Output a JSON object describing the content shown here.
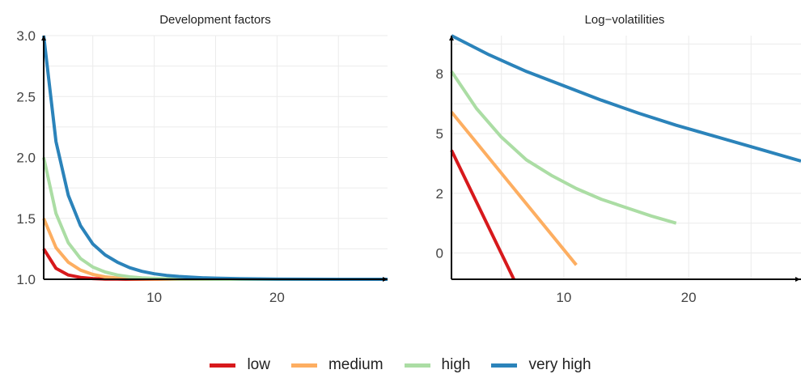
{
  "chart_data": [
    {
      "type": "line",
      "title": "Development factors",
      "xlabel": "",
      "ylabel": "",
      "xlim": [
        1,
        29
      ],
      "ylim": [
        1.0,
        3.0
      ],
      "xticks": [
        10,
        20
      ],
      "yticks": [
        1.0,
        1.5,
        2.0,
        2.5,
        3.0
      ],
      "ytick_labels": [
        "1.0",
        "1.5",
        "2.0",
        "2.5",
        "3.0"
      ],
      "grid": true,
      "series": [
        {
          "name": "low",
          "color": "#d7191c",
          "x": [
            1,
            2,
            3,
            4,
            5,
            6,
            7,
            8,
            9,
            10,
            12,
            15,
            20,
            25,
            29
          ],
          "y": [
            1.25,
            1.09,
            1.035,
            1.015,
            1.006,
            1.002,
            1.001,
            1.0,
            1.0,
            1.0,
            1.0,
            1.0,
            1.0,
            1.0,
            1.0
          ]
        },
        {
          "name": "medium",
          "color": "#fdae61",
          "x": [
            1,
            2,
            3,
            4,
            5,
            6,
            7,
            8,
            9,
            10,
            12,
            15,
            20,
            25,
            29
          ],
          "y": [
            1.5,
            1.26,
            1.14,
            1.075,
            1.04,
            1.02,
            1.01,
            1.005,
            1.003,
            1.001,
            1.0,
            1.0,
            1.0,
            1.0,
            1.0
          ]
        },
        {
          "name": "high",
          "color": "#abdda4",
          "x": [
            1,
            2,
            3,
            4,
            5,
            6,
            7,
            8,
            9,
            10,
            12,
            15,
            20,
            25,
            29
          ],
          "y": [
            2.0,
            1.54,
            1.3,
            1.17,
            1.1,
            1.06,
            1.035,
            1.02,
            1.012,
            1.007,
            1.002,
            1.0,
            1.0,
            1.0,
            1.0
          ]
        },
        {
          "name": "very high",
          "color": "#2b83ba",
          "x": [
            1,
            2,
            3,
            4,
            5,
            6,
            7,
            8,
            9,
            10,
            11,
            12,
            13,
            14,
            15,
            17,
            20,
            25,
            29
          ],
          "y": [
            3.0,
            2.13,
            1.69,
            1.44,
            1.29,
            1.2,
            1.14,
            1.095,
            1.065,
            1.045,
            1.032,
            1.023,
            1.017,
            1.012,
            1.009,
            1.005,
            1.002,
            1.0,
            1.0
          ]
        }
      ]
    },
    {
      "type": "line",
      "title": "Log−volatilities",
      "xlabel": "",
      "ylabel": "",
      "xlim": [
        1,
        29
      ],
      "ylim": [
        -1.1,
        9.1
      ],
      "xticks": [
        10,
        20
      ],
      "yticks": [
        0,
        2.5,
        5,
        7.5
      ],
      "ytick_labels": [
        "0",
        "2",
        "5",
        "8"
      ],
      "grid": true,
      "series": [
        {
          "name": "low",
          "color": "#d7191c",
          "x": [
            1,
            6
          ],
          "y": [
            4.3,
            -1.1
          ]
        },
        {
          "name": "medium",
          "color": "#fdae61",
          "x": [
            1,
            11
          ],
          "y": [
            5.9,
            -0.5
          ]
        },
        {
          "name": "high",
          "color": "#abdda4",
          "x": [
            1,
            3,
            5,
            7,
            9,
            11,
            13,
            15,
            17,
            19
          ],
          "y": [
            7.6,
            6.05,
            4.85,
            3.9,
            3.25,
            2.7,
            2.25,
            1.9,
            1.55,
            1.25
          ]
        },
        {
          "name": "very high",
          "color": "#2b83ba",
          "x": [
            1,
            4,
            7,
            10,
            13,
            16,
            19,
            22,
            25,
            29
          ],
          "y": [
            9.1,
            8.3,
            7.6,
            7.0,
            6.4,
            5.85,
            5.35,
            4.9,
            4.45,
            3.85
          ]
        }
      ]
    }
  ],
  "legend": {
    "placement": "bottom",
    "items": [
      {
        "label": "low",
        "color": "#d7191c"
      },
      {
        "label": "medium",
        "color": "#fdae61"
      },
      {
        "label": "high",
        "color": "#abdda4"
      },
      {
        "label": "very high",
        "color": "#2b83ba"
      }
    ]
  }
}
